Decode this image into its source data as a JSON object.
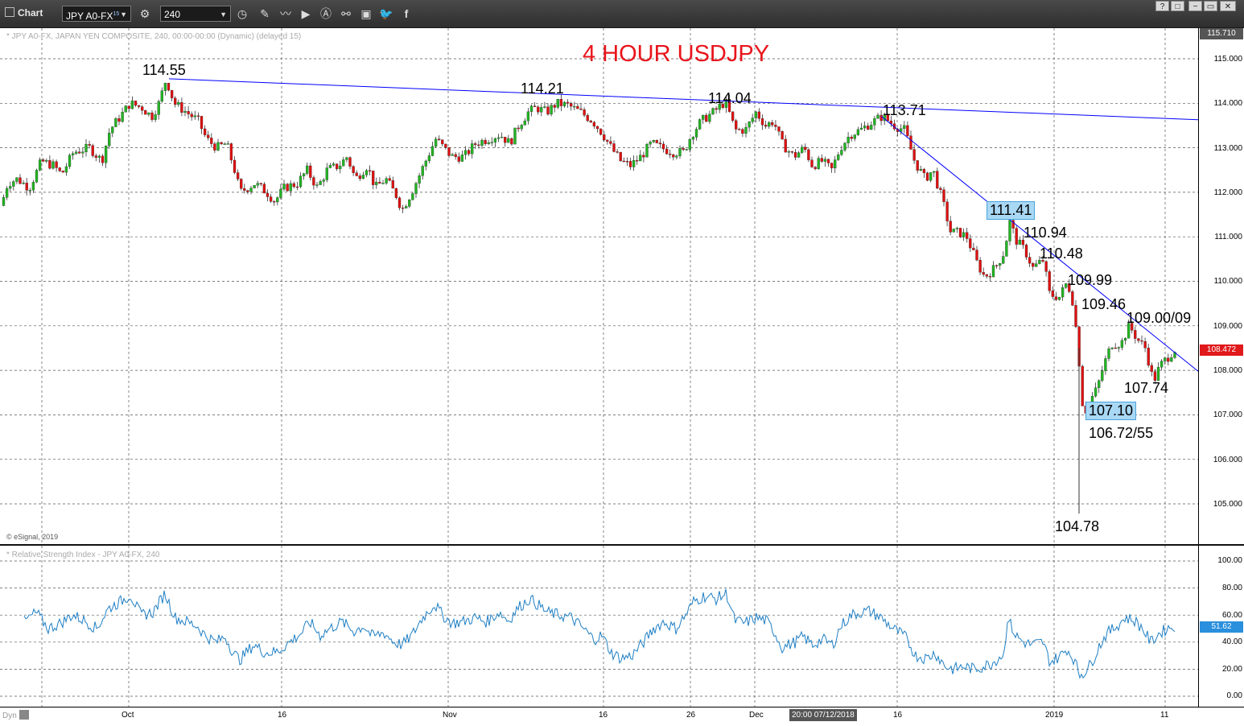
{
  "window": {
    "title": "Chart",
    "symbol": "JPY A0-FX",
    "symbol_sup": "15",
    "interval": "240",
    "buttons": [
      "?",
      "□",
      "−",
      "▭",
      "✕"
    ]
  },
  "toolbar_icons": [
    "settings-icon",
    "time-icon",
    "pencil-icon",
    "line-icon",
    "play-icon",
    "alert-icon",
    "link-icon",
    "message-icon",
    "twitter-icon",
    "facebook-icon"
  ],
  "colors": {
    "up": "#22b522",
    "down": "#e01010",
    "trend": "#0000ff",
    "rsi": "#1f7fc4",
    "title": "#e8151b",
    "price_tag": "#e0191b",
    "rsi_tag": "#2a8fdd",
    "top_tag": "#555555"
  },
  "price_panel": {
    "info": "* JPY A0-FX, JAPAN YEN COMPOSITE, 240, 00:00-00:00 (Dynamic) (delayed 15)",
    "watermark": "© eSignal, 2019",
    "last_price": "108.472",
    "top_price": "115.710"
  },
  "rsi_panel": {
    "info": "* Relative Strength Index - JPY A0-FX, 240",
    "last_value": "51.62"
  },
  "xaxis": {
    "dyn": "Dyn",
    "hover_time": "20:00 07/12/2018",
    "labels": [
      "Oct",
      "16",
      "Nov",
      "16",
      "26",
      "Dec",
      "16",
      "2019",
      "11"
    ]
  },
  "chart_data": {
    "type": "candlestick",
    "title": "4 HOUR USDJPY",
    "y_axis": {
      "min": 104.2,
      "max": 115.7,
      "ticks": [
        "115.000",
        "114.000",
        "113.000",
        "112.000",
        "111.000",
        "110.000",
        "109.000",
        "108.000",
        "107.000",
        "106.000",
        "105.000"
      ]
    },
    "rsi_axis": {
      "min": -5,
      "max": 105,
      "ticks": [
        "100.00",
        "80.00",
        "60.00",
        "40.00",
        "20.00",
        "0.00"
      ]
    },
    "x_labels": [
      "Oct",
      "16",
      "Nov",
      "16",
      "26",
      "Dec",
      "16",
      "2019",
      "11"
    ],
    "price_path": [
      [
        0,
        111.7
      ],
      [
        8,
        112.2
      ],
      [
        20,
        112.3
      ],
      [
        35,
        112.1
      ],
      [
        50,
        112.7
      ],
      [
        65,
        112.6
      ],
      [
        75,
        112.4
      ],
      [
        90,
        112.9
      ],
      [
        110,
        113.0
      ],
      [
        125,
        112.7
      ],
      [
        135,
        113.4
      ],
      [
        148,
        113.7
      ],
      [
        160,
        114.0
      ],
      [
        175,
        113.9
      ],
      [
        187,
        113.7
      ],
      [
        196,
        114.0
      ],
      [
        205,
        114.55
      ],
      [
        215,
        114.0
      ],
      [
        230,
        113.8
      ],
      [
        245,
        113.6
      ],
      [
        255,
        113.2
      ],
      [
        268,
        113.0
      ],
      [
        280,
        113.1
      ],
      [
        290,
        112.5
      ],
      [
        297,
        112.0
      ],
      [
        315,
        112.2
      ],
      [
        330,
        112.0
      ],
      [
        340,
        111.8
      ],
      [
        352,
        112.1
      ],
      [
        368,
        112.2
      ],
      [
        380,
        112.5
      ],
      [
        393,
        112.1
      ],
      [
        405,
        112.5
      ],
      [
        420,
        112.6
      ],
      [
        430,
        112.8
      ],
      [
        440,
        112.3
      ],
      [
        455,
        112.6
      ],
      [
        465,
        112.1
      ],
      [
        478,
        112.3
      ],
      [
        492,
        111.9
      ],
      [
        498,
        111.6
      ],
      [
        510,
        112.0
      ],
      [
        525,
        112.6
      ],
      [
        540,
        113.2
      ],
      [
        550,
        113.0
      ],
      [
        560,
        112.8
      ],
      [
        575,
        112.8
      ],
      [
        590,
        113.1
      ],
      [
        605,
        113.2
      ],
      [
        620,
        113.3
      ],
      [
        632,
        113.1
      ],
      [
        643,
        113.5
      ],
      [
        655,
        113.8
      ],
      [
        665,
        113.9
      ],
      [
        678,
        113.8
      ],
      [
        690,
        114.0
      ],
      [
        705,
        113.95
      ],
      [
        720,
        113.8
      ],
      [
        735,
        113.6
      ],
      [
        748,
        113.3
      ],
      [
        758,
        113.0
      ],
      [
        770,
        112.7
      ],
      [
        782,
        112.6
      ],
      [
        795,
        112.8
      ],
      [
        808,
        113.1
      ],
      [
        820,
        113.0
      ],
      [
        835,
        112.9
      ],
      [
        848,
        112.9
      ],
      [
        858,
        113.3
      ],
      [
        870,
        113.6
      ],
      [
        885,
        113.8
      ],
      [
        900,
        114.04
      ],
      [
        912,
        113.4
      ],
      [
        925,
        113.4
      ],
      [
        938,
        113.8
      ],
      [
        950,
        113.5
      ],
      [
        960,
        113.6
      ],
      [
        970,
        113.1
      ],
      [
        985,
        112.8
      ],
      [
        998,
        113.0
      ],
      [
        1008,
        112.6
      ],
      [
        1020,
        112.7
      ],
      [
        1032,
        112.5
      ],
      [
        1043,
        113.0
      ],
      [
        1055,
        113.3
      ],
      [
        1068,
        113.4
      ],
      [
        1080,
        113.55
      ],
      [
        1095,
        113.71
      ],
      [
        1110,
        113.5
      ],
      [
        1123,
        113.4
      ],
      [
        1135,
        112.7
      ],
      [
        1148,
        112.3
      ],
      [
        1158,
        112.5
      ],
      [
        1170,
        111.8
      ],
      [
        1180,
        111.1
      ],
      [
        1190,
        111.1
      ],
      [
        1200,
        111.0
      ],
      [
        1213,
        110.4
      ],
      [
        1222,
        110.1
      ],
      [
        1235,
        110.3
      ],
      [
        1248,
        110.7
      ],
      [
        1252,
        111.41
      ],
      [
        1262,
        110.9
      ],
      [
        1272,
        110.7
      ],
      [
        1282,
        110.3
      ],
      [
        1295,
        110.48
      ],
      [
        1303,
        109.7
      ],
      [
        1315,
        109.65
      ],
      [
        1325,
        109.99
      ],
      [
        1333,
        109.46
      ],
      [
        1340,
        108.1
      ],
      [
        1344,
        107.2
      ],
      [
        1348,
        107.1
      ],
      [
        1356,
        107.4
      ],
      [
        1362,
        107.6
      ],
      [
        1370,
        108.1
      ],
      [
        1380,
        108.6
      ],
      [
        1392,
        108.6
      ],
      [
        1402,
        109.0
      ],
      [
        1412,
        108.7
      ],
      [
        1422,
        108.5
      ],
      [
        1432,
        107.74
      ],
      [
        1440,
        108.1
      ],
      [
        1450,
        108.3
      ],
      [
        1460,
        108.5
      ]
    ],
    "rsi_path": [
      [
        30,
        55
      ],
      [
        45,
        62
      ],
      [
        60,
        50
      ],
      [
        75,
        54
      ],
      [
        90,
        60
      ],
      [
        105,
        56
      ],
      [
        120,
        50
      ],
      [
        135,
        65
      ],
      [
        150,
        70
      ],
      [
        162,
        75
      ],
      [
        175,
        60
      ],
      [
        190,
        62
      ],
      [
        205,
        76
      ],
      [
        218,
        58
      ],
      [
        232,
        55
      ],
      [
        245,
        52
      ],
      [
        255,
        45
      ],
      [
        268,
        40
      ],
      [
        280,
        44
      ],
      [
        290,
        32
      ],
      [
        298,
        27
      ],
      [
        315,
        38
      ],
      [
        330,
        32
      ],
      [
        345,
        33
      ],
      [
        360,
        40
      ],
      [
        375,
        47
      ],
      [
        385,
        55
      ],
      [
        398,
        45
      ],
      [
        410,
        50
      ],
      [
        425,
        55
      ],
      [
        440,
        48
      ],
      [
        452,
        52
      ],
      [
        463,
        44
      ],
      [
        477,
        47
      ],
      [
        490,
        40
      ],
      [
        500,
        38
      ],
      [
        512,
        45
      ],
      [
        525,
        58
      ],
      [
        540,
        68
      ],
      [
        550,
        60
      ],
      [
        562,
        54
      ],
      [
        575,
        55
      ],
      [
        590,
        58
      ],
      [
        605,
        55
      ],
      [
        620,
        62
      ],
      [
        632,
        56
      ],
      [
        645,
        66
      ],
      [
        658,
        72
      ],
      [
        668,
        68
      ],
      [
        680,
        62
      ],
      [
        695,
        60
      ],
      [
        710,
        58
      ],
      [
        725,
        50
      ],
      [
        738,
        42
      ],
      [
        748,
        45
      ],
      [
        760,
        32
      ],
      [
        772,
        28
      ],
      [
        785,
        30
      ],
      [
        800,
        40
      ],
      [
        812,
        50
      ],
      [
        825,
        55
      ],
      [
        840,
        50
      ],
      [
        852,
        60
      ],
      [
        862,
        70
      ],
      [
        875,
        74
      ],
      [
        890,
        72
      ],
      [
        903,
        76
      ],
      [
        913,
        56
      ],
      [
        925,
        54
      ],
      [
        940,
        58
      ],
      [
        952,
        56
      ],
      [
        962,
        48
      ],
      [
        972,
        36
      ],
      [
        988,
        40
      ],
      [
        998,
        44
      ],
      [
        1010,
        38
      ],
      [
        1022,
        42
      ],
      [
        1035,
        38
      ],
      [
        1045,
        52
      ],
      [
        1058,
        60
      ],
      [
        1070,
        62
      ],
      [
        1080,
        63
      ],
      [
        1095,
        58
      ],
      [
        1110,
        50
      ],
      [
        1125,
        44
      ],
      [
        1138,
        30
      ],
      [
        1152,
        28
      ],
      [
        1162,
        32
      ],
      [
        1175,
        22
      ],
      [
        1185,
        20
      ],
      [
        1198,
        22
      ],
      [
        1210,
        20
      ],
      [
        1222,
        22
      ],
      [
        1234,
        25
      ],
      [
        1248,
        32
      ],
      [
        1252,
        58
      ],
      [
        1262,
        45
      ],
      [
        1272,
        40
      ],
      [
        1282,
        38
      ],
      [
        1296,
        40
      ],
      [
        1305,
        25
      ],
      [
        1318,
        30
      ],
      [
        1326,
        35
      ],
      [
        1334,
        28
      ],
      [
        1342,
        16
      ],
      [
        1348,
        18
      ],
      [
        1356,
        24
      ],
      [
        1365,
        36
      ],
      [
        1375,
        46
      ],
      [
        1388,
        52
      ],
      [
        1398,
        58
      ],
      [
        1410,
        56
      ],
      [
        1420,
        50
      ],
      [
        1430,
        40
      ],
      [
        1440,
        46
      ],
      [
        1450,
        50
      ],
      [
        1460,
        52
      ]
    ],
    "trendlines": [
      {
        "from": [
          210,
          114.55
        ],
        "to": [
          1489,
          113.63
        ]
      },
      {
        "from": [
          1095,
          113.71
        ],
        "to": [
          1489,
          107.98
        ]
      }
    ],
    "annotations": [
      {
        "label": "114.55",
        "value": 114.55
      },
      {
        "label": "114.21",
        "value": 114.21
      },
      {
        "label": "114.04",
        "value": 114.04
      },
      {
        "label": "113.71",
        "value": 113.71
      },
      {
        "label": "111.41",
        "value": 111.41,
        "highlight": true
      },
      {
        "label": "110.94",
        "value": 110.94
      },
      {
        "label": "110.48",
        "value": 110.48
      },
      {
        "label": "109.99",
        "value": 109.99
      },
      {
        "label": "109.46",
        "value": 109.46
      },
      {
        "label": "109.00/09",
        "value": 109.0
      },
      {
        "label": "107.74",
        "value": 107.74
      },
      {
        "label": "107.10",
        "value": 107.1,
        "highlight": true
      },
      {
        "label": "106.72/55",
        "value": 106.72
      },
      {
        "label": "104.78",
        "value": 104.78
      }
    ]
  }
}
